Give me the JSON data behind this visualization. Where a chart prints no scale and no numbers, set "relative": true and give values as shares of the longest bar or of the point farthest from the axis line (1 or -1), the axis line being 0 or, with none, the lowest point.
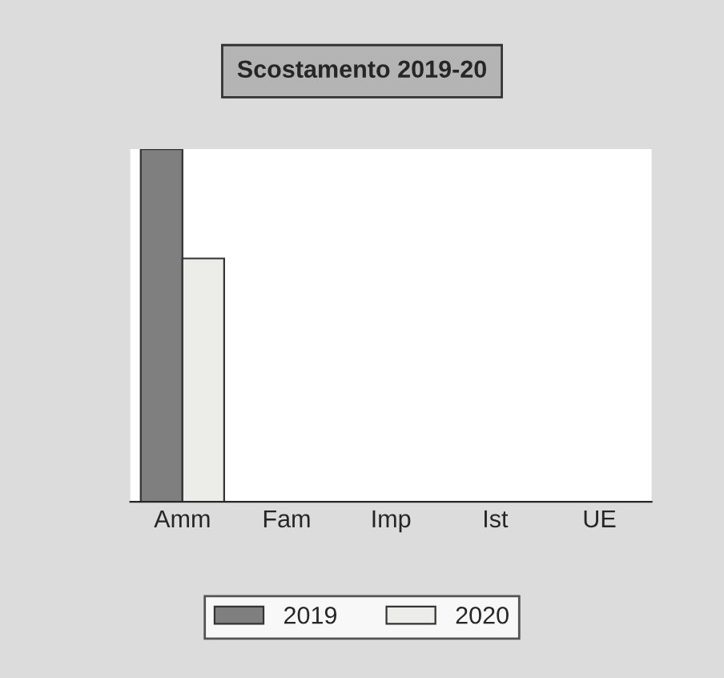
{
  "chart_data": {
    "type": "bar",
    "title": "Scostamento 2019-20",
    "relative": true,
    "categories": [
      "Amm",
      "Fam",
      "Imp",
      "Ist",
      "UE"
    ],
    "series": [
      {
        "name": "2019",
        "color": "#7f7f7f",
        "values": [
          1,
          0,
          0,
          0,
          0
        ]
      },
      {
        "name": "2020",
        "color": "#ecece8",
        "values": [
          0.69,
          0,
          0,
          0,
          0
        ]
      }
    ],
    "legend": "bottom"
  }
}
